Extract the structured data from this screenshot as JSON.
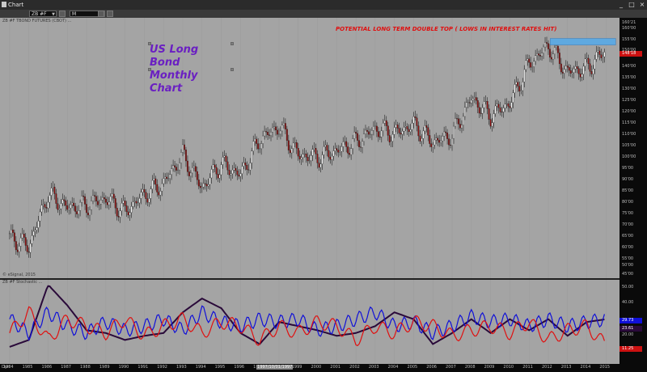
{
  "window": {
    "title": "Chart"
  },
  "toolbar": {
    "symbol": "ZB #F",
    "interval": "M"
  },
  "chart": {
    "study_title": "ZB #F  TBOND  FUTURES  (CBOT)  ...",
    "copyright": "© eSignal, 2015",
    "title_line1": "US Long Bond",
    "title_line2": "Monthly Chart",
    "annotation": "POTENTIAL LONG TERM DOUBLE TOP ( LOWS IN INTEREST RATES HIT)",
    "last_price": "148'18",
    "axis_top": "160'21",
    "price_ticks": [
      "160'00",
      "155'00",
      "150'00",
      "145'00",
      "140'00",
      "135'00",
      "130'00",
      "125'00",
      "120'00",
      "115'00",
      "110'00",
      "105'00",
      "100'00",
      "95'00",
      "90'00",
      "85'00",
      "80'00",
      "75'00",
      "70'00",
      "65'00",
      "60'00",
      "55'00",
      "50'00",
      "45'00"
    ]
  },
  "indicator": {
    "title": "ZB #F  Stochastic ...",
    "ticks": [
      "50.00",
      "40.00",
      "30.00",
      "20.00",
      "10.00"
    ],
    "badges": [
      "29.73",
      "23.61",
      "11.25"
    ],
    "colors": {
      "dark": "#2a0a3a",
      "blue": "#1010d8",
      "red": "#e01010"
    }
  },
  "xaxis": {
    "dyn_label": "Dyn",
    "labels": [
      "1984",
      "1985",
      "1986",
      "1987",
      "1988",
      "1989",
      "1990",
      "1991",
      "1992",
      "1993",
      "1994",
      "1995",
      "1996",
      "1997",
      "1998",
      "1999",
      "2000",
      "2001",
      "2002",
      "2003",
      "2004",
      "2005",
      "2006",
      "2007",
      "2008",
      "2009",
      "2010",
      "2011",
      "2012",
      "2013",
      "2014",
      "2015"
    ],
    "highlight": "1997/10/01/1997"
  },
  "chart_data": {
    "type": "line",
    "title": "US Long Bond Monthly Chart",
    "annotation": "POTENTIAL LONG TERM DOUBLE TOP ( LOWS IN INTEREST RATES HIT)",
    "ylim": [
      45,
      160
    ],
    "x": [
      1984,
      1985,
      1986,
      1987,
      1988,
      1989,
      1990,
      1991,
      1992,
      1993,
      1994,
      1995,
      1996,
      1997,
      1998,
      1999,
      2000,
      2001,
      2002,
      2003,
      2004,
      2005,
      2006,
      2007,
      2008,
      2009,
      2010,
      2011,
      2012,
      2013,
      2014,
      2015
    ],
    "series": [
      {
        "values": [
          62,
          58,
          82,
          76,
          77,
          80,
          74,
          82,
          87,
          100,
          85,
          96,
          91,
          107,
          113,
          100,
          99,
          102,
          106,
          112,
          110,
          114,
          106,
          109,
          126,
          118,
          124,
          142,
          150,
          138,
          140,
          148
        ]
      }
    ],
    "indicator_ylim": [
      0,
      55
    ],
    "indicator_series": [
      {
        "color": "#2a0a3a",
        "values": [
          10,
          15,
          55,
          40,
          22,
          20,
          15,
          18,
          20,
          35,
          45,
          38,
          20,
          12,
          28,
          25,
          22,
          18,
          20,
          25,
          35,
          30,
          12,
          20,
          30,
          20,
          30,
          22,
          30,
          18,
          28,
          30
        ]
      },
      {
        "color": "#1010d8",
        "values": [
          30,
          20,
          35,
          25,
          20,
          28,
          22,
          25,
          30,
          22,
          35,
          28,
          25,
          30,
          28,
          30,
          22,
          25,
          30,
          35,
          25,
          28,
          20,
          25,
          32,
          28,
          30,
          25,
          30,
          25,
          28,
          30
        ]
      },
      {
        "color": "#e01010",
        "values": [
          20,
          35,
          15,
          30,
          25,
          20,
          30,
          18,
          25,
          30,
          20,
          28,
          25,
          15,
          25,
          20,
          28,
          25,
          15,
          25,
          20,
          28,
          25,
          18,
          22,
          25,
          20,
          28,
          15,
          22,
          25,
          11
        ]
      }
    ]
  }
}
